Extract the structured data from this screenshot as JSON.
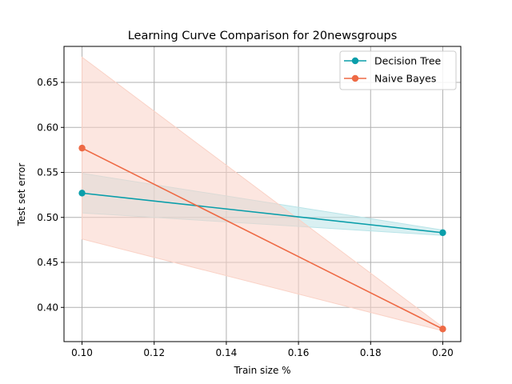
{
  "chart_data": {
    "type": "line",
    "title": "Learning Curve Comparison for 20newsgroups",
    "xlabel": "Train size %",
    "ylabel": "Test set error",
    "xlim": [
      0.095,
      0.205
    ],
    "ylim": [
      0.362,
      0.69
    ],
    "x_ticks": [
      0.1,
      0.12,
      0.14,
      0.16,
      0.18,
      0.2
    ],
    "x_tick_labels": [
      "0.10",
      "0.12",
      "0.14",
      "0.16",
      "0.18",
      "0.20"
    ],
    "y_ticks": [
      0.4,
      0.45,
      0.5,
      0.55,
      0.6,
      0.65
    ],
    "y_tick_labels": [
      "0.40",
      "0.45",
      "0.50",
      "0.55",
      "0.60",
      "0.65"
    ],
    "grid": true,
    "legend_position": "top-right",
    "x": [
      0.1,
      0.2
    ],
    "series": [
      {
        "name": "Decision Tree",
        "values": [
          0.527,
          0.483
        ],
        "lower": [
          0.505,
          0.48
        ],
        "upper": [
          0.549,
          0.486
        ],
        "color": "#0a9eaa",
        "band_color": "#b9e4e8"
      },
      {
        "name": "Naive Bayes",
        "values": [
          0.577,
          0.376
        ],
        "lower": [
          0.476,
          0.374
        ],
        "upper": [
          0.678,
          0.378
        ],
        "color": "#ee6a45",
        "band_color": "#fad2c6"
      }
    ]
  }
}
